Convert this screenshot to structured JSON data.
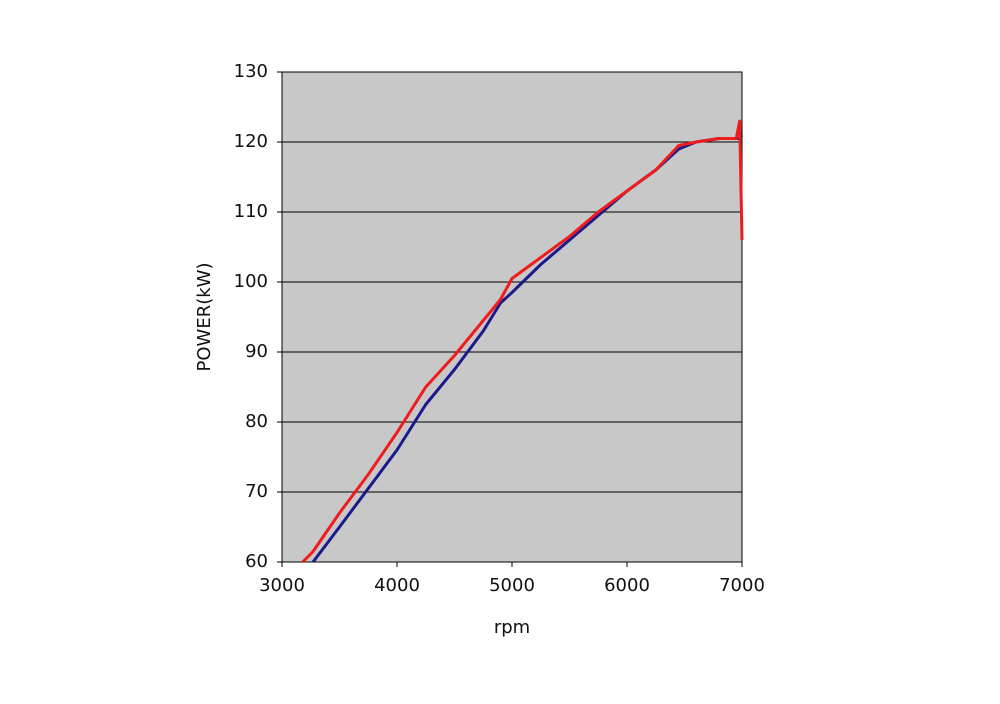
{
  "chart_data": {
    "type": "line",
    "x_label": "rpm",
    "y_label": "POWER(kW)",
    "x": [
      3180,
      3270,
      3500,
      3750,
      4000,
      4250,
      4500,
      4750,
      4900,
      5000,
      5250,
      5500,
      5750,
      6000,
      6250,
      6450,
      6600,
      6800,
      6950,
      6980,
      7000
    ],
    "series": [
      {
        "color": "#1a1a8c",
        "values": [
          null,
          60,
          65,
          70.5,
          76,
          82.5,
          87.5,
          93,
          97,
          98.5,
          102.5,
          106,
          109.5,
          113,
          116,
          119,
          120,
          120.5,
          120.5,
          120.5,
          121
        ]
      },
      {
        "color": "#ee1c1c",
        "values": [
          60,
          61.5,
          67,
          72.5,
          78.5,
          85,
          89.5,
          94.5,
          97.5,
          100.5,
          103.5,
          106.5,
          110,
          113,
          116,
          119.5,
          120,
          120.5,
          120.5,
          123,
          106
        ]
      }
    ],
    "xlim": [
      3000,
      7000
    ],
    "xticks": [
      3000,
      4000,
      5000,
      6000,
      7000
    ],
    "ylim": [
      60,
      130
    ],
    "yticks": [
      60,
      70,
      80,
      90,
      100,
      110,
      120,
      130
    ],
    "grid": true,
    "background": "#c8c8c8"
  }
}
